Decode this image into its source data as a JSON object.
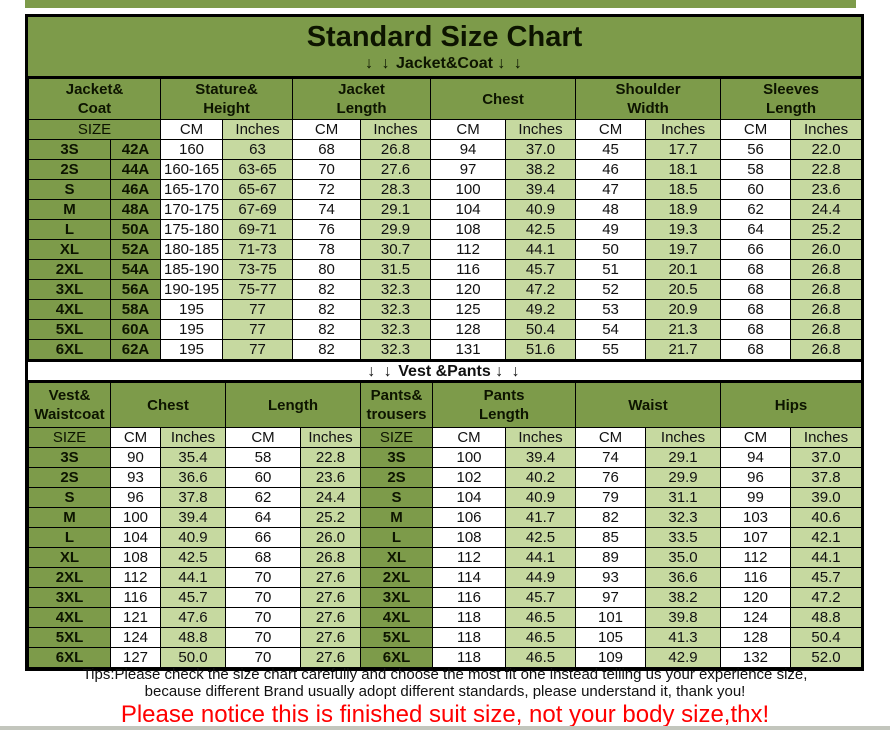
{
  "header": {
    "title": "Standard Size Chart",
    "arrows": "↓ ↓",
    "jacket_section": "Jacket&Coat",
    "vest_section": "Vest &Pants"
  },
  "colors": {
    "table_green": "#7d9b4a",
    "light_green": "#c6d9a0",
    "cell_white": "#ffffff",
    "border_black": "#000000",
    "warning_red": "#ff0000"
  },
  "tips": {
    "line1": "Tips:Please check the size chart carefully and choose the most fit one instead telling us your experience size,",
    "line2": "because different Brand usually adopt different standards, please understand it, thank you!",
    "warning": "Please notice this is finished suit size, not your body size,thx!"
  },
  "chart_data": [
    {
      "type": "table",
      "title": "Jacket&Coat",
      "group_headers": [
        {
          "text": "Jacket&\nCoat",
          "span": 2
        },
        {
          "text": "Stature&\nHeight",
          "span": 2
        },
        {
          "text": "Jacket\nLength",
          "span": 2
        },
        {
          "text": "Chest",
          "span": 2
        },
        {
          "text": "Shoulder\nWidth",
          "span": 2
        },
        {
          "text": "Sleeves\nLength",
          "span": 2
        }
      ],
      "unit_row": [
        {
          "text": "SIZE",
          "span": 2,
          "type": "size"
        },
        {
          "text": "CM",
          "type": "cm"
        },
        {
          "text": "Inches",
          "type": "in"
        },
        {
          "text": "CM",
          "type": "cm"
        },
        {
          "text": "Inches",
          "type": "in"
        },
        {
          "text": "CM",
          "type": "cm"
        },
        {
          "text": "Inches",
          "type": "in"
        },
        {
          "text": "CM",
          "type": "cm"
        },
        {
          "text": "Inches",
          "type": "in"
        },
        {
          "text": "CM",
          "type": "cm"
        },
        {
          "text": "Inches",
          "type": "in"
        }
      ],
      "col_types": [
        "size",
        "size",
        "cm",
        "in",
        "cm",
        "in",
        "cm",
        "in",
        "cm",
        "in",
        "cm",
        "in"
      ],
      "rows": [
        [
          "3S",
          "42A",
          "160",
          "63",
          "68",
          "26.8",
          "94",
          "37.0",
          "45",
          "17.7",
          "56",
          "22.0"
        ],
        [
          "2S",
          "44A",
          "160-165",
          "63-65",
          "70",
          "27.6",
          "97",
          "38.2",
          "46",
          "18.1",
          "58",
          "22.8"
        ],
        [
          "S",
          "46A",
          "165-170",
          "65-67",
          "72",
          "28.3",
          "100",
          "39.4",
          "47",
          "18.5",
          "60",
          "23.6"
        ],
        [
          "M",
          "48A",
          "170-175",
          "67-69",
          "74",
          "29.1",
          "104",
          "40.9",
          "48",
          "18.9",
          "62",
          "24.4"
        ],
        [
          "L",
          "50A",
          "175-180",
          "69-71",
          "76",
          "29.9",
          "108",
          "42.5",
          "49",
          "19.3",
          "64",
          "25.2"
        ],
        [
          "XL",
          "52A",
          "180-185",
          "71-73",
          "78",
          "30.7",
          "112",
          "44.1",
          "50",
          "19.7",
          "66",
          "26.0"
        ],
        [
          "2XL",
          "54A",
          "185-190",
          "73-75",
          "80",
          "31.5",
          "116",
          "45.7",
          "51",
          "20.1",
          "68",
          "26.8"
        ],
        [
          "3XL",
          "56A",
          "190-195",
          "75-77",
          "82",
          "32.3",
          "120",
          "47.2",
          "52",
          "20.5",
          "68",
          "26.8"
        ],
        [
          "4XL",
          "58A",
          "195",
          "77",
          "82",
          "32.3",
          "125",
          "49.2",
          "53",
          "20.9",
          "68",
          "26.8"
        ],
        [
          "5XL",
          "60A",
          "195",
          "77",
          "82",
          "32.3",
          "128",
          "50.4",
          "54",
          "21.3",
          "68",
          "26.8"
        ],
        [
          "6XL",
          "62A",
          "195",
          "77",
          "82",
          "32.3",
          "131",
          "51.6",
          "55",
          "21.7",
          "68",
          "26.8"
        ]
      ]
    },
    {
      "type": "table",
      "title": "Vest &Pants",
      "group_headers": [
        {
          "text": "Vest&\nWaistcoat",
          "span": 1
        },
        {
          "text": "Chest",
          "span": 2
        },
        {
          "text": "Length",
          "span": 2
        },
        {
          "text": "Pants&\ntrousers",
          "span": 1
        },
        {
          "text": "Pants\nLength",
          "span": 2
        },
        {
          "text": "Waist",
          "span": 2
        },
        {
          "text": "Hips",
          "span": 2
        }
      ],
      "unit_row": [
        {
          "text": "SIZE",
          "type": "size"
        },
        {
          "text": "CM",
          "type": "cm"
        },
        {
          "text": "Inches",
          "type": "in"
        },
        {
          "text": "CM",
          "type": "cm"
        },
        {
          "text": "Inches",
          "type": "in"
        },
        {
          "text": "SIZE",
          "type": "size"
        },
        {
          "text": "CM",
          "type": "cm"
        },
        {
          "text": "Inches",
          "type": "in"
        },
        {
          "text": "CM",
          "type": "cm"
        },
        {
          "text": "Inches",
          "type": "in"
        },
        {
          "text": "CM",
          "type": "cm"
        },
        {
          "text": "Inches",
          "type": "in"
        }
      ],
      "col_types": [
        "size",
        "cm",
        "in",
        "cm",
        "in",
        "size",
        "cm",
        "in",
        "cm",
        "in",
        "cm",
        "in"
      ],
      "rows": [
        [
          "3S",
          "90",
          "35.4",
          "58",
          "22.8",
          "3S",
          "100",
          "39.4",
          "74",
          "29.1",
          "94",
          "37.0"
        ],
        [
          "2S",
          "93",
          "36.6",
          "60",
          "23.6",
          "2S",
          "102",
          "40.2",
          "76",
          "29.9",
          "96",
          "37.8"
        ],
        [
          "S",
          "96",
          "37.8",
          "62",
          "24.4",
          "S",
          "104",
          "40.9",
          "79",
          "31.1",
          "99",
          "39.0"
        ],
        [
          "M",
          "100",
          "39.4",
          "64",
          "25.2",
          "M",
          "106",
          "41.7",
          "82",
          "32.3",
          "103",
          "40.6"
        ],
        [
          "L",
          "104",
          "40.9",
          "66",
          "26.0",
          "L",
          "108",
          "42.5",
          "85",
          "33.5",
          "107",
          "42.1"
        ],
        [
          "XL",
          "108",
          "42.5",
          "68",
          "26.8",
          "XL",
          "112",
          "44.1",
          "89",
          "35.0",
          "112",
          "44.1"
        ],
        [
          "2XL",
          "112",
          "44.1",
          "70",
          "27.6",
          "2XL",
          "114",
          "44.9",
          "93",
          "36.6",
          "116",
          "45.7"
        ],
        [
          "3XL",
          "116",
          "45.7",
          "70",
          "27.6",
          "3XL",
          "116",
          "45.7",
          "97",
          "38.2",
          "120",
          "47.2"
        ],
        [
          "4XL",
          "121",
          "47.6",
          "70",
          "27.6",
          "4XL",
          "118",
          "46.5",
          "101",
          "39.8",
          "124",
          "48.8"
        ],
        [
          "5XL",
          "124",
          "48.8",
          "70",
          "27.6",
          "5XL",
          "118",
          "46.5",
          "105",
          "41.3",
          "128",
          "50.4"
        ],
        [
          "6XL",
          "127",
          "50.0",
          "70",
          "27.6",
          "6XL",
          "118",
          "46.5",
          "109",
          "42.9",
          "132",
          "52.0"
        ]
      ]
    }
  ]
}
